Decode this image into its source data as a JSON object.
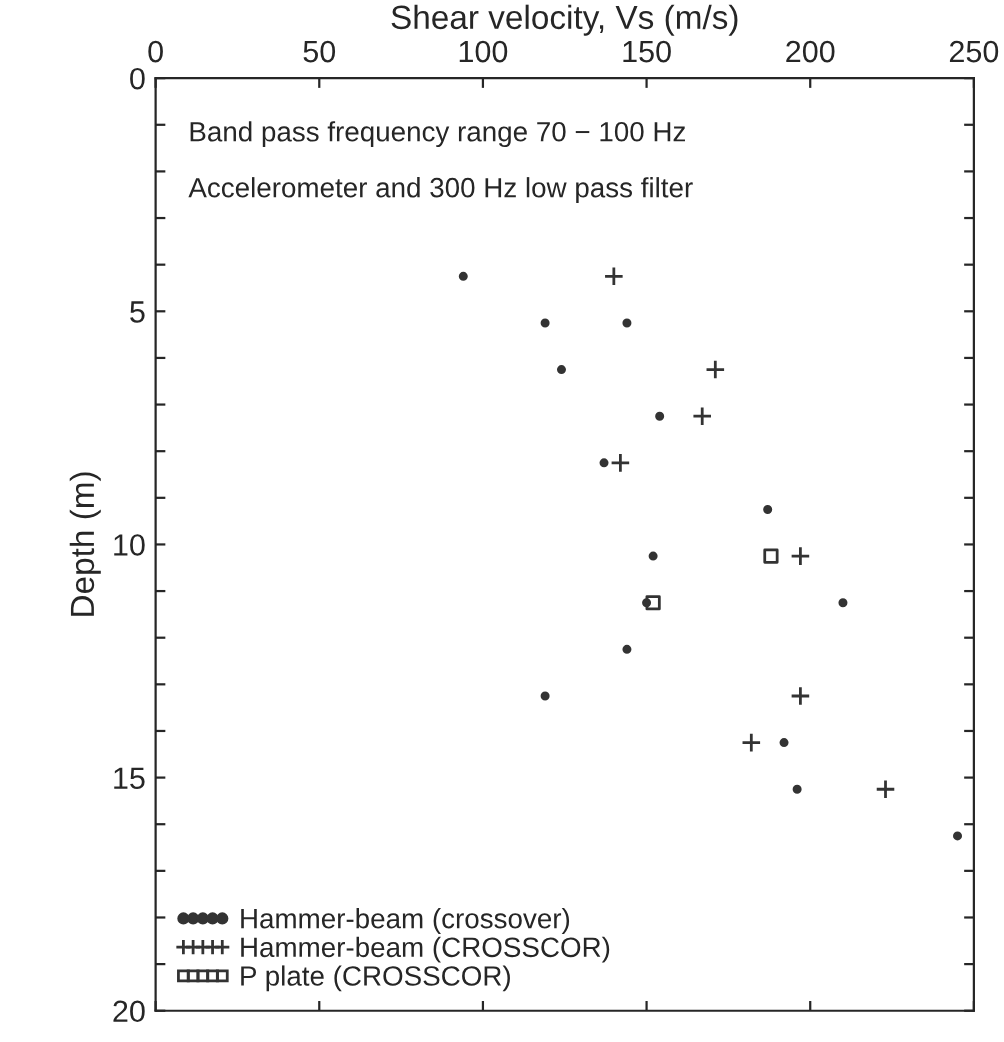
{
  "chart_data": {
    "type": "scatter",
    "xlabel": "Shear velocity, Vs (m/s)",
    "ylabel": "Depth (m)",
    "annotations": [
      "Band pass frequency range 70 − 100 Hz",
      "Accelerometer and 300 Hz low pass filter"
    ],
    "xlim": [
      0,
      250
    ],
    "xticks": [
      0,
      50,
      100,
      150,
      200,
      250
    ],
    "ylim": [
      20,
      0
    ],
    "yticks": [
      0,
      {
        "value": 1,
        "label": null
      },
      {
        "value": 2,
        "label": null
      },
      {
        "value": 3,
        "label": null
      },
      {
        "value": 4,
        "label": null
      },
      5,
      {
        "value": 6,
        "label": null
      },
      {
        "value": 7,
        "label": null
      },
      {
        "value": 8,
        "label": null
      },
      {
        "value": 9,
        "label": null
      },
      10,
      {
        "value": 11,
        "label": null
      },
      {
        "value": 12,
        "label": null
      },
      {
        "value": 13,
        "label": null
      },
      {
        "value": 14,
        "label": null
      },
      15,
      {
        "value": 16,
        "label": null
      },
      {
        "value": 17,
        "label": null
      },
      {
        "value": 18,
        "label": null
      },
      {
        "value": 19,
        "label": null
      },
      20
    ],
    "grid": false,
    "legend": "bottom left",
    "series": [
      {
        "name": "Hammer-beam (crossover)",
        "color": "#333333",
        "marker": "circle",
        "x": [
          94,
          119,
          144,
          124,
          154,
          137,
          187,
          152,
          150,
          210,
          144,
          119,
          192,
          196,
          245
        ],
        "values": [
          4.25,
          5.25,
          5.25,
          6.25,
          7.25,
          8.25,
          9.25,
          10.25,
          11.25,
          11.25,
          12.25,
          13.25,
          14.25,
          15.25,
          16.25
        ]
      },
      {
        "name": "Hammer-beam (CROSSCOR)",
        "color": "#333333",
        "marker": "cross",
        "x": [
          140,
          171,
          167,
          142,
          197,
          197,
          182,
          223
        ],
        "values": [
          4.25,
          6.25,
          7.25,
          8.25,
          10.25,
          13.25,
          14.25,
          15.25
        ]
      },
      {
        "name": "P plate (CROSSCOR)",
        "color": "#333333",
        "marker": "square",
        "x": [
          188,
          152
        ],
        "values": [
          10.25,
          11.25
        ]
      }
    ]
  }
}
